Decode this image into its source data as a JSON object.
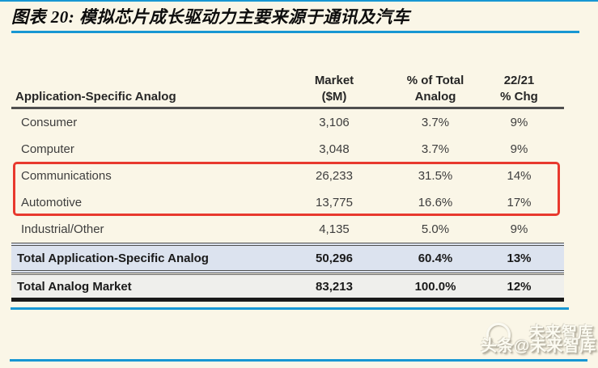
{
  "figure": {
    "title": "图表 20: 模拟芯片成长驱动力主要来源于通讯及汽车"
  },
  "colors": {
    "background": "#FAF6E7",
    "accent_blue": "#1797D3",
    "highlight_red": "#E8392E",
    "total_row_blue_bg": "#DCE3EF",
    "total_row_gray_bg": "#EFEFEC",
    "border_dark": "#4F4F4F"
  },
  "table": {
    "headers": [
      {
        "line1": "",
        "line2": "Application-Specific Analog"
      },
      {
        "line1": "Market",
        "line2": "($M)"
      },
      {
        "line1": "% of Total",
        "line2": "Analog"
      },
      {
        "line1": "22/21",
        "line2": "% Chg"
      }
    ],
    "rows": [
      {
        "label": "Consumer",
        "market": "3,106",
        "pct_of_total": "3.7%",
        "yoy_chg": "9%"
      },
      {
        "label": "Computer",
        "market": "3,048",
        "pct_of_total": "3.7%",
        "yoy_chg": "9%"
      },
      {
        "label": "Communications",
        "market": "26,233",
        "pct_of_total": "31.5%",
        "yoy_chg": "14%"
      },
      {
        "label": "Automotive",
        "market": "13,775",
        "pct_of_total": "16.6%",
        "yoy_chg": "17%"
      },
      {
        "label": "Industrial/Other",
        "market": "4,135",
        "pct_of_total": "5.0%",
        "yoy_chg": "9%"
      }
    ],
    "totals": [
      {
        "label": "Total Application-Specific Analog",
        "market": "50,296",
        "pct_of_total": "60.4%",
        "yoy_chg": "13%"
      },
      {
        "label": "Total Analog Market",
        "market": "83,213",
        "pct_of_total": "100.0%",
        "yoy_chg": "12%"
      }
    ],
    "highlighted_rows": [
      "Communications",
      "Automotive"
    ]
  },
  "watermark": {
    "line1": "未来智库",
    "line2": "头条@未来智库"
  },
  "chart_data": {
    "type": "table",
    "title": "图表 20: 模拟芯片成长驱动力主要来源于通讯及汽车",
    "columns": [
      "Application-Specific Analog",
      "Market ($M)",
      "% of Total Analog",
      "22/21 % Chg"
    ],
    "rows": [
      [
        "Consumer",
        3106,
        3.7,
        9
      ],
      [
        "Computer",
        3048,
        3.7,
        9
      ],
      [
        "Communications",
        26233,
        31.5,
        14
      ],
      [
        "Automotive",
        13775,
        16.6,
        17
      ],
      [
        "Industrial/Other",
        4135,
        5.0,
        9
      ],
      [
        "Total Application-Specific Analog",
        50296,
        60.4,
        13
      ],
      [
        "Total Analog Market",
        83213,
        100.0,
        12
      ]
    ],
    "units": {
      "market": "$M",
      "pct_of_total": "%",
      "yoy_chg": "% change 2022 vs 2021"
    },
    "annotations": "Communications and Automotive rows are outlined with a red highlight box"
  }
}
